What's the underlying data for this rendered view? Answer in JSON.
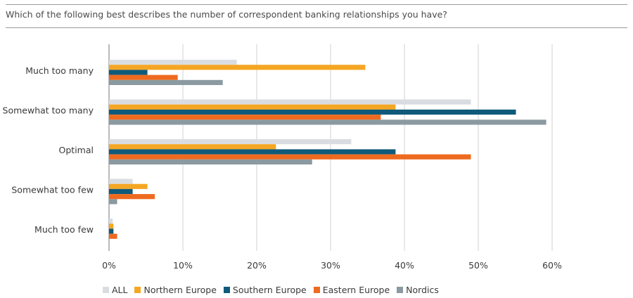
{
  "question": "Which of the following best describes the number of correspondent banking relationships you have?",
  "chart_data": {
    "type": "bar",
    "orientation": "horizontal",
    "title": "",
    "xlabel": "",
    "ylabel": "",
    "xlim": [
      0,
      60
    ],
    "ticks": [
      "0%",
      "10%",
      "20%",
      "30%",
      "40%",
      "50%",
      "60%"
    ],
    "tick_values": [
      0,
      10,
      20,
      30,
      40,
      50,
      60
    ],
    "grid": true,
    "legend_position": "bottom-left",
    "categories": [
      "Much too many",
      "Somewhat too many",
      "Optimal",
      "Somewhat too few",
      "Much too few"
    ],
    "series": [
      {
        "name": "ALL",
        "color": "#d9dde1",
        "values": [
          17.3,
          49.0,
          32.8,
          3.2,
          0.5
        ]
      },
      {
        "name": "Northern Europe",
        "color": "#f5a623",
        "values": [
          34.7,
          38.8,
          22.6,
          5.2,
          0.6
        ]
      },
      {
        "name": "Southern Europe",
        "color": "#0f5a7a",
        "values": [
          5.2,
          55.1,
          38.8,
          3.2,
          0.6
        ]
      },
      {
        "name": "Eastern Europe",
        "color": "#ee6a1f",
        "values": [
          9.3,
          36.8,
          49.0,
          6.2,
          1.1
        ]
      },
      {
        "name": "Nordics",
        "color": "#8a9aa0",
        "values": [
          15.4,
          59.2,
          27.5,
          1.1,
          0
        ]
      }
    ]
  }
}
